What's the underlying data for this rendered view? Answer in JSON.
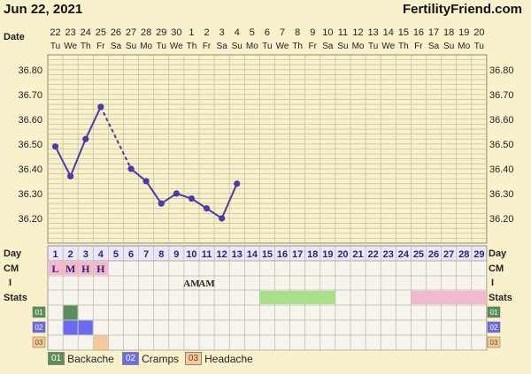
{
  "header": {
    "date": "Jun 22, 2021",
    "site": "FertilityFriend.com"
  },
  "row_labels": {
    "date": "Date",
    "day": "Day",
    "cm": "CM",
    "intercourse": "I",
    "stats": "Stats"
  },
  "chart_data": {
    "type": "line",
    "date_numbers": [
      "22",
      "23",
      "24",
      "25",
      "26",
      "27",
      "28",
      "29",
      "30",
      "1",
      "2",
      "3",
      "4",
      "5",
      "6",
      "7",
      "8",
      "9",
      "10",
      "11",
      "12",
      "13",
      "14",
      "15",
      "16",
      "17",
      "18",
      "19",
      "20"
    ],
    "weekdays": [
      "Tu",
      "We",
      "Th",
      "Fr",
      "Sa",
      "Su",
      "Mo",
      "Tu",
      "We",
      "Th",
      "Fr",
      "Sa",
      "Su",
      "Mo",
      "Tu",
      "We",
      "Th",
      "Fr",
      "Sa",
      "Su",
      "Mo",
      "Tu",
      "We",
      "Th",
      "Fr",
      "Sa",
      "Su",
      "Mo",
      "Tu"
    ],
    "cycle_days": [
      "1",
      "2",
      "3",
      "4",
      "5",
      "6",
      "7",
      "8",
      "9",
      "10",
      "11",
      "12",
      "13",
      "14",
      "15",
      "16",
      "17",
      "18",
      "19",
      "20",
      "21",
      "22",
      "23",
      "24",
      "25",
      "26",
      "27",
      "28",
      "29"
    ],
    "ylim": [
      36.1,
      36.86
    ],
    "yticks": [
      "36.20",
      "36.30",
      "36.40",
      "36.50",
      "36.60",
      "36.70",
      "36.80"
    ],
    "temps": [
      {
        "day": 1,
        "value": 36.49
      },
      {
        "day": 2,
        "value": 36.37
      },
      {
        "day": 3,
        "value": 36.52
      },
      {
        "day": 4,
        "value": 36.65
      },
      {
        "day": 6,
        "value": 36.4
      },
      {
        "day": 7,
        "value": 36.35
      },
      {
        "day": 8,
        "value": 36.26
      },
      {
        "day": 9,
        "value": 36.3
      },
      {
        "day": 10,
        "value": 36.28
      },
      {
        "day": 11,
        "value": 36.24
      },
      {
        "day": 12,
        "value": 36.2
      },
      {
        "day": 13,
        "value": 36.34
      }
    ],
    "dashed_segments": [
      [
        4,
        6
      ]
    ],
    "line_color": "#4b3aa8",
    "cervical_mucus": [
      {
        "day": 1,
        "label": "L"
      },
      {
        "day": 2,
        "label": "M"
      },
      {
        "day": 3,
        "label": "H"
      },
      {
        "day": 4,
        "label": "H"
      }
    ],
    "intercourse": [
      {
        "day": 10,
        "label": "AM"
      },
      {
        "day": 11,
        "label": "AM"
      }
    ],
    "stats_bands": [
      {
        "from": 15,
        "to": 19,
        "color": "#a8e08a"
      },
      {
        "from": 25,
        "to": 29,
        "color": "#f2b8cc"
      }
    ],
    "symptom_rows": [
      {
        "code": "01",
        "name": "Backache",
        "color": "#5a8f5a",
        "days": [
          2
        ]
      },
      {
        "code": "02",
        "name": "Cramps",
        "color": "#6b6bf0",
        "days": [
          2,
          3
        ]
      },
      {
        "code": "03",
        "name": "Headache",
        "color": "#f5c99a",
        "days": [
          4
        ]
      }
    ]
  }
}
